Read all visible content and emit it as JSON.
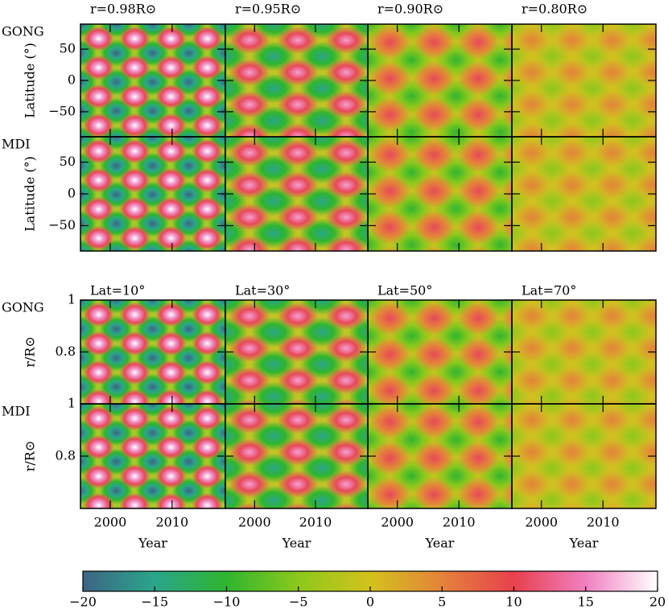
{
  "chart_data": {
    "type": "heatmap",
    "top": {
      "columns": [
        "r=0.98R⊙",
        "r=0.95R⊙",
        "r=0.90R⊙",
        "r=0.80R⊙"
      ],
      "rows": [
        "GONG",
        "MDI"
      ],
      "ylabel": "Latitude (°)",
      "ylim": [
        -90,
        90
      ],
      "yticks": [
        {
          "value": -50,
          "label": "−50"
        },
        0,
        50
      ]
    },
    "bottom": {
      "columns": [
        "Lat=10°",
        "Lat=30°",
        "Lat=50°",
        "Lat=70°"
      ],
      "rows": [
        "GONG",
        "MDI"
      ],
      "ylabel": "r/R⊙",
      "ylim": [
        0.6,
        1
      ],
      "yticks": [
        0.8,
        1
      ]
    },
    "xlabel": "Year",
    "xlim": [
      1995.2,
      2018.6
    ],
    "xticks": [
      2000,
      2010
    ],
    "colorbar": {
      "range": [
        -20,
        20
      ],
      "ticks": [
        {
          "value": -20,
          "label": "−20"
        },
        {
          "value": -15,
          "label": "−15"
        },
        {
          "value": -10,
          "label": "−10"
        },
        {
          "value": -5,
          "label": "−5"
        },
        0,
        5,
        10,
        15,
        20
      ],
      "colors": [
        "#3d6585",
        "#2aa58a",
        "#2fb52f",
        "#8cc81c",
        "#d4c21c",
        "#e4823a",
        "#e8404e",
        "#f080c0",
        "#ffffff"
      ]
    }
  }
}
